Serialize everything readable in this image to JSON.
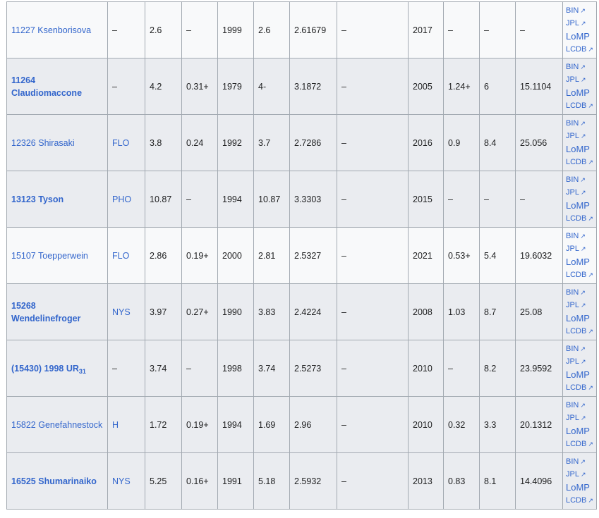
{
  "link_labels": {
    "bin": "BIN",
    "jpl": "JPL",
    "lomp": "LoMP",
    "lcdb": "LCDB"
  },
  "external_icon": "↗",
  "rows": [
    {
      "name": "11227 Ksenborisova",
      "name_sub": "",
      "bold": false,
      "group": "–",
      "group_link": false,
      "period": "2.6",
      "amp": "–",
      "year": "1999",
      "p2": "2.6",
      "v1": "2.61679",
      "note": "–",
      "year2": "2017",
      "a2": "–",
      "u": "–",
      "d": "–",
      "shade": false
    },
    {
      "name": "11264 Claudiomaccone",
      "name_sub": "",
      "bold": true,
      "group": "–",
      "group_link": false,
      "period": "4.2",
      "amp": "0.31+",
      "year": "1979",
      "p2": "4-",
      "v1": "3.1872",
      "note": "–",
      "year2": "2005",
      "a2": "1.24+",
      "u": "6",
      "d": "15.1104",
      "shade": true
    },
    {
      "name": "12326 Shirasaki",
      "name_sub": "",
      "bold": false,
      "group": "FLO",
      "group_link": true,
      "period": "3.8",
      "amp": "0.24",
      "year": "1992",
      "p2": "3.7",
      "v1": "2.7286",
      "note": "–",
      "year2": "2016",
      "a2": "0.9",
      "u": "8.4",
      "d": "25.056",
      "shade": true
    },
    {
      "name": "13123 Tyson",
      "name_sub": "",
      "bold": true,
      "group": "PHO",
      "group_link": true,
      "period": "10.87",
      "amp": "–",
      "year": "1994",
      "p2": "10.87",
      "v1": "3.3303",
      "note": "–",
      "year2": "2015",
      "a2": "–",
      "u": "–",
      "d": "–",
      "shade": true
    },
    {
      "name": "15107 Toepperwein",
      "name_sub": "",
      "bold": false,
      "group": "FLO",
      "group_link": true,
      "period": "2.86",
      "amp": "0.19+",
      "year": "2000",
      "p2": "2.81",
      "v1": "2.5327",
      "note": "–",
      "year2": "2021",
      "a2": "0.53+",
      "u": "5.4",
      "d": "19.6032",
      "shade": false
    },
    {
      "name": "15268 Wendelinefroger",
      "name_sub": "",
      "bold": true,
      "group": "NYS",
      "group_link": true,
      "period": "3.97",
      "amp": "0.27+",
      "year": "1990",
      "p2": "3.83",
      "v1": "2.4224",
      "note": "–",
      "year2": "2008",
      "a2": "1.03",
      "u": "8.7",
      "d": "25.08",
      "shade": true
    },
    {
      "name": "(15430) 1998 UR",
      "name_sub": "31",
      "bold": true,
      "group": "–",
      "group_link": false,
      "period": "3.74",
      "amp": "–",
      "year": "1998",
      "p2": "3.74",
      "v1": "2.5273",
      "note": "–",
      "year2": "2010",
      "a2": "–",
      "u": "8.2",
      "d": "23.9592",
      "shade": true
    },
    {
      "name": "15822 Genefahnestock",
      "name_sub": "",
      "bold": false,
      "group": "H",
      "group_link": true,
      "period": "1.72",
      "amp": "0.19+",
      "year": "1994",
      "p2": "1.69",
      "v1": "2.96",
      "note": "–",
      "year2": "2010",
      "a2": "0.32",
      "u": "3.3",
      "d": "20.1312",
      "shade": true
    },
    {
      "name": "16525 Shumarinaiko",
      "name_sub": "",
      "bold": true,
      "group": "NYS",
      "group_link": true,
      "period": "5.25",
      "amp": "0.16+",
      "year": "1991",
      "p2": "5.18",
      "v1": "2.5932",
      "note": "–",
      "year2": "2013",
      "a2": "0.83",
      "u": "8.1",
      "d": "14.4096",
      "shade": true
    }
  ],
  "colors": {
    "link": "#3366cc",
    "text": "#202122",
    "border": "#a2a9b1",
    "row_light": "#f8f9fa",
    "row_shade": "#eaecf0"
  }
}
